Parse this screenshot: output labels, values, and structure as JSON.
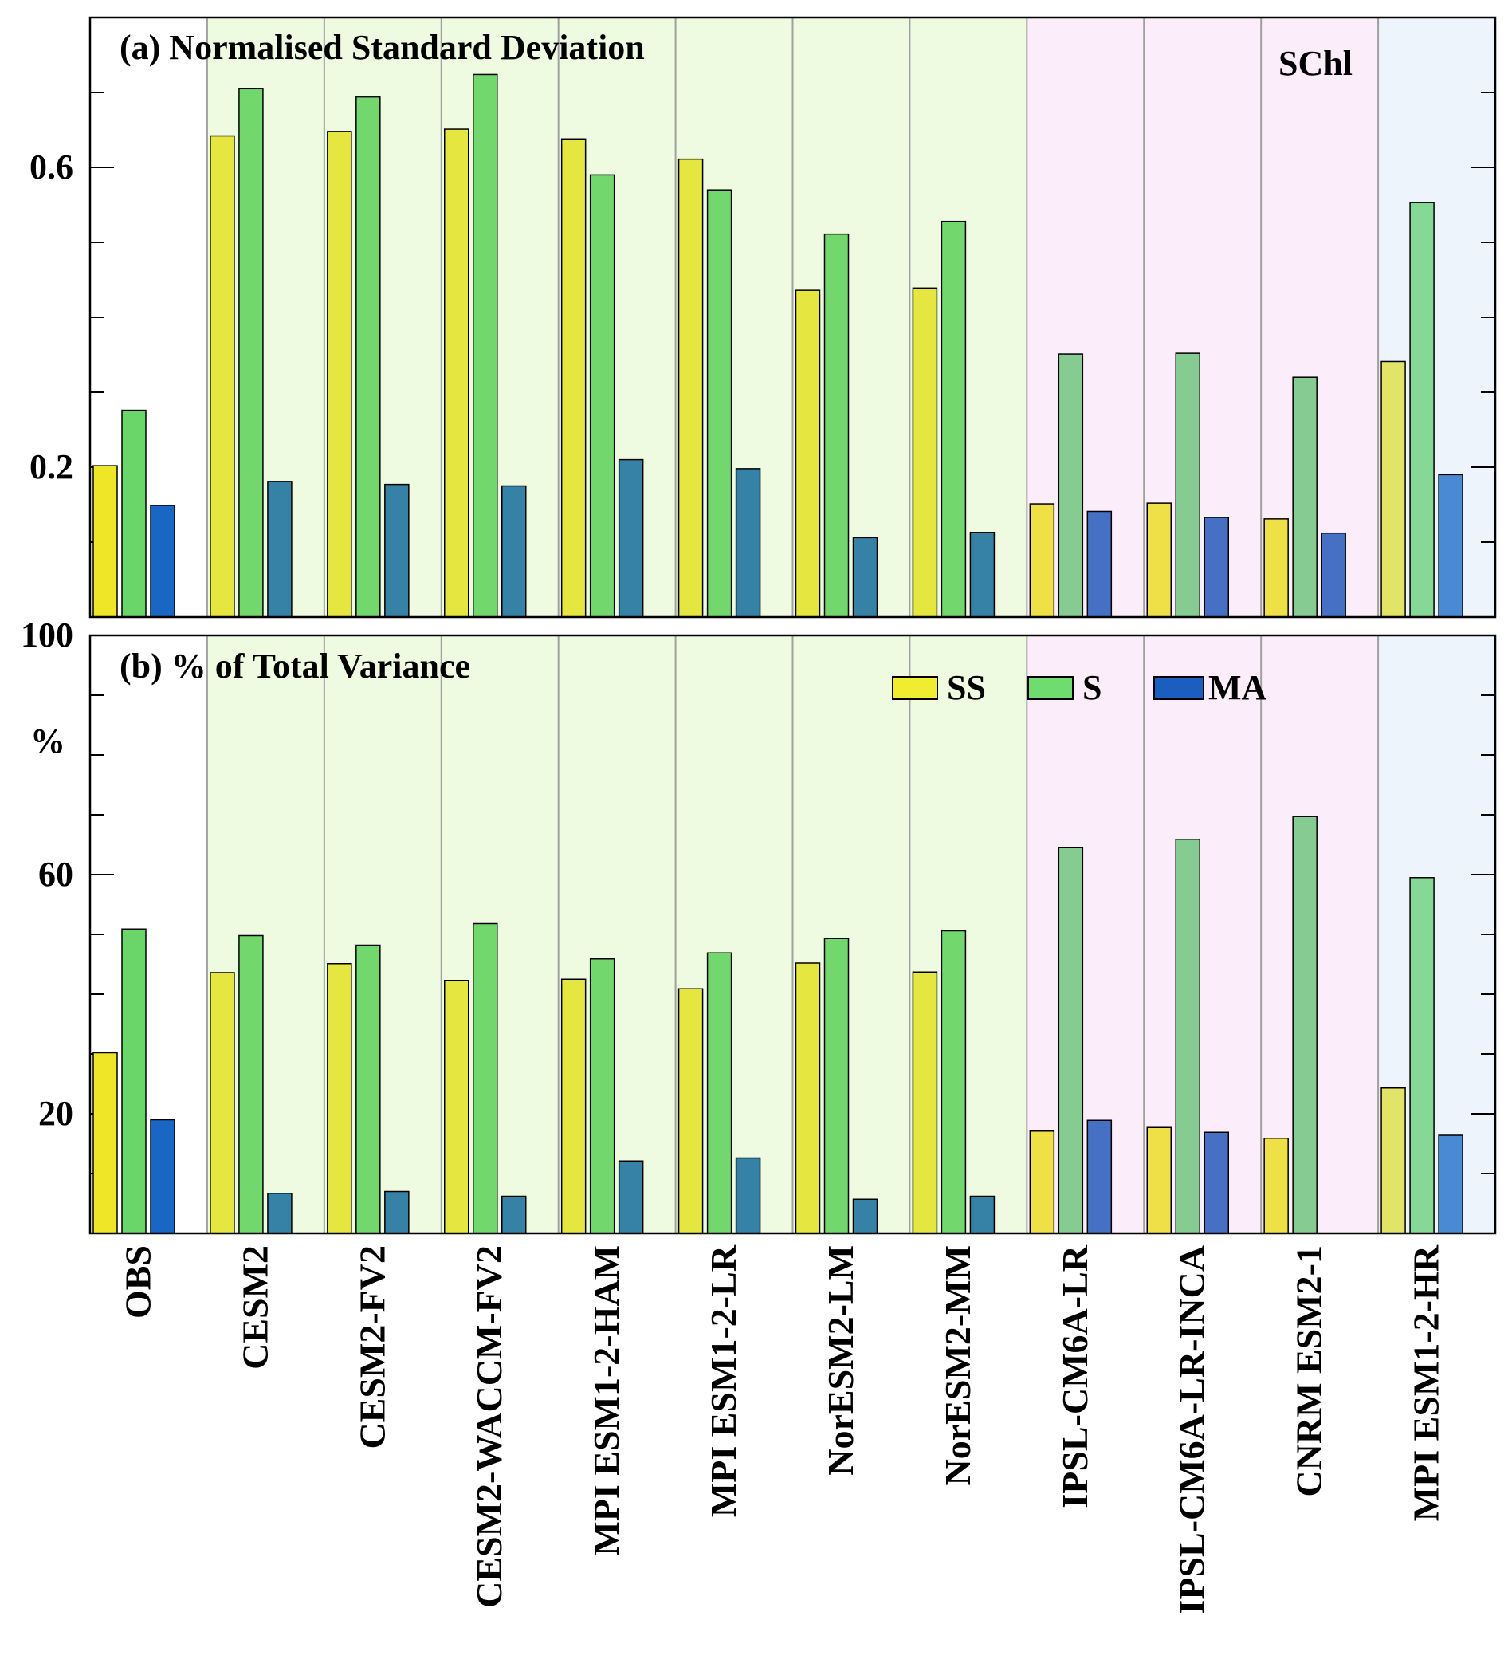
{
  "chart_data": [
    {
      "type": "bar",
      "panel": "a",
      "title": "(a) Normalised Standard Deviation",
      "annotation": "SChl",
      "xlabel": "",
      "ylabel": "",
      "ylim": [
        0.0,
        0.8
      ],
      "yticks": [
        "0.2",
        "0.6"
      ],
      "categories": [
        "OBS",
        "CESM2",
        "CESM2-FV2",
        "CESM2-WACCM-FV2",
        "MPI ESM1-2-HAM",
        "MPI ESM1-2-LR",
        "NorESM2-LM",
        "NorESM2-MM",
        "IPSL-CM6A-LR",
        "IPSL-CM6A-LR-INCA",
        "CNRM ESM2-1",
        "MPI ESM1-2-HR"
      ],
      "series": [
        {
          "name": "SS",
          "values": [
            0.202,
            0.642,
            0.648,
            0.651,
            0.638,
            0.611,
            0.436,
            0.439,
            0.151,
            0.152,
            0.131,
            0.341
          ]
        },
        {
          "name": "S",
          "values": [
            0.276,
            0.705,
            0.694,
            0.724,
            0.59,
            0.57,
            0.511,
            0.528,
            0.351,
            0.352,
            0.32,
            0.553
          ]
        },
        {
          "name": "MA",
          "values": [
            0.149,
            0.181,
            0.177,
            0.175,
            0.21,
            0.198,
            0.106,
            0.113,
            0.141,
            0.133,
            0.112,
            0.19
          ]
        }
      ]
    },
    {
      "type": "bar",
      "panel": "b",
      "title": "(b) % of Total Variance",
      "xlabel": "",
      "ylabel": "%",
      "ylim": [
        0,
        100
      ],
      "yticks": [
        "100",
        "60",
        "20"
      ],
      "legend_position": "top-right",
      "categories": [
        "OBS",
        "CESM2",
        "CESM2-FV2",
        "CESM2-WACCM-FV2",
        "MPI ESM1-2-HAM",
        "MPI ESM1-2-LR",
        "NorESM2-LM",
        "NorESM2-MM",
        "IPSL-CM6A-LR",
        "IPSL-CM6A-LR-INCA",
        "CNRM ESM2-1",
        "MPI ESM1-2-HR"
      ],
      "series": [
        {
          "name": "SS",
          "values": [
            30.2,
            43.6,
            45.1,
            42.3,
            42.5,
            40.9,
            45.2,
            43.7,
            17.1,
            17.7,
            15.9,
            24.3
          ]
        },
        {
          "name": "S",
          "values": [
            50.9,
            49.8,
            48.2,
            51.8,
            45.9,
            46.9,
            49.3,
            50.6,
            64.5,
            65.9,
            69.7,
            59.5
          ]
        },
        {
          "name": "MA",
          "values": [
            19.0,
            6.7,
            7.0,
            6.2,
            12.1,
            12.6,
            5.7,
            6.2,
            18.9,
            16.9,
            null,
            16.4
          ]
        }
      ]
    }
  ],
  "legend": {
    "items": [
      {
        "label": "SS",
        "color": "#f0ec30"
      },
      {
        "label": "S",
        "color": "#6edc6e"
      },
      {
        "label": "MA",
        "color": "#1a5fbf"
      }
    ]
  },
  "colors": {
    "group_green_bg": "#eefbe0",
    "group_pink_bg": "#fbedf9",
    "group_blue_bg": "#eef4fc",
    "bar_colors": [
      [
        "#f0e628",
        "#6ad66a",
        "#1a66c4"
      ],
      [
        "#e5e640",
        "#72d86e",
        "#3582a6"
      ],
      [
        "#f0e048",
        "#86cc92",
        "#4670c4"
      ],
      [
        "#e2e468",
        "#86d896",
        "#4a8ad4"
      ]
    ]
  },
  "groups": {
    "green": [
      1,
      2,
      3,
      4,
      5,
      6,
      7
    ],
    "pink": [
      8,
      9,
      10
    ],
    "blue": [
      11
    ]
  }
}
